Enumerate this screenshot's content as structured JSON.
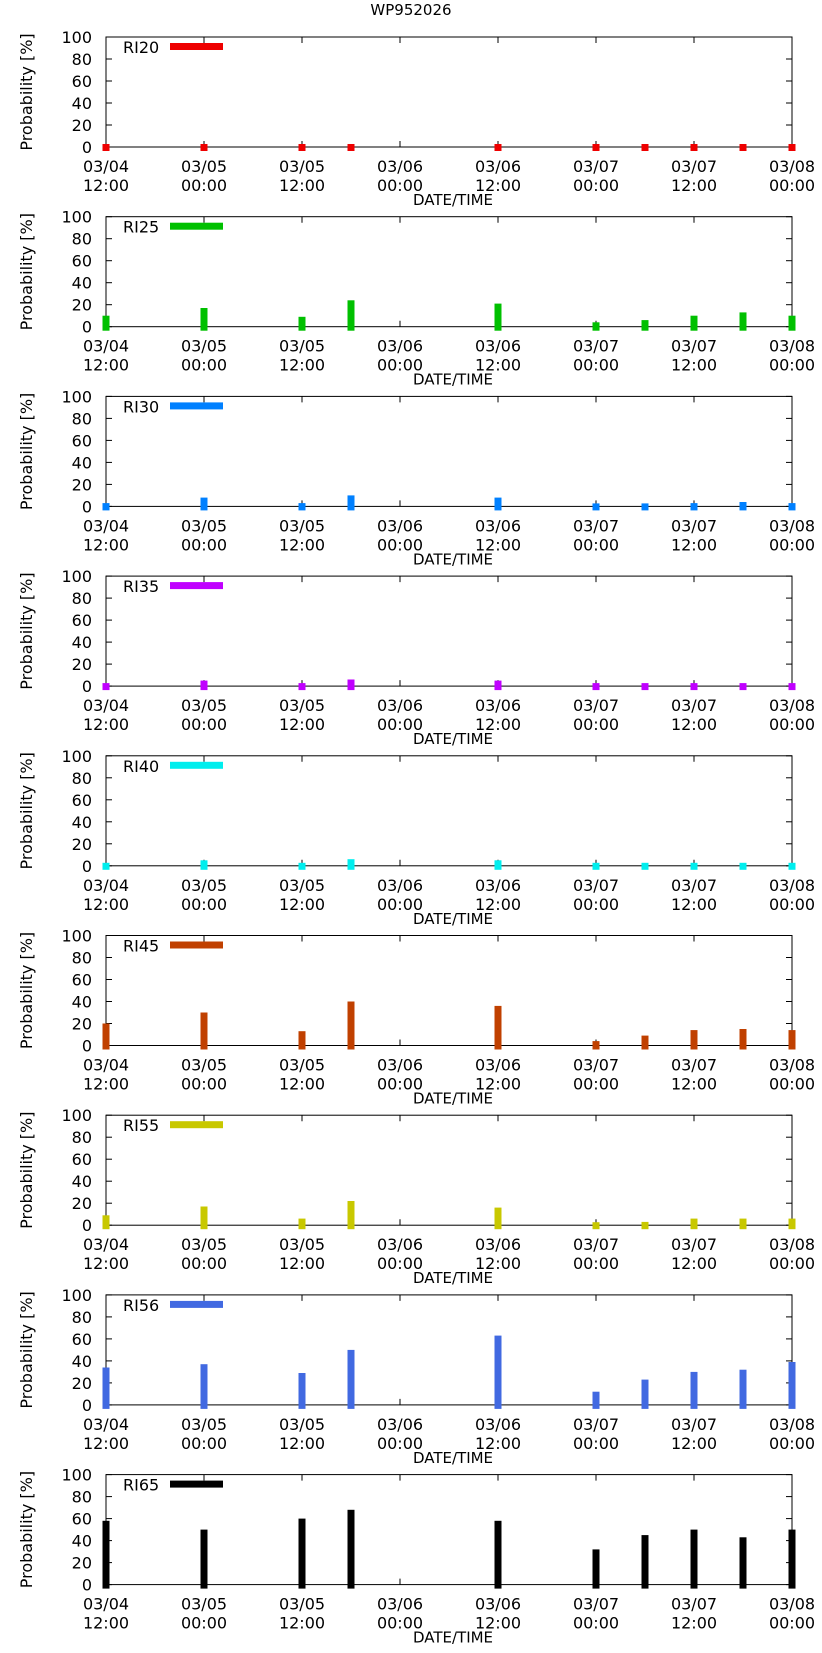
{
  "page": {
    "title": "WP952026"
  },
  "x_ticks": [
    {
      "date": "03/04",
      "time": "12:00",
      "t": 0
    },
    {
      "date": "03/05",
      "time": "00:00",
      "t": 12
    },
    {
      "date": "03/05",
      "time": "12:00",
      "t": 24
    },
    {
      "date": "03/06",
      "time": "00:00",
      "t": 36
    },
    {
      "date": "03/06",
      "time": "12:00",
      "t": 48
    },
    {
      "date": "03/07",
      "time": "00:00",
      "t": 60
    },
    {
      "date": "03/07",
      "time": "12:00",
      "t": 72
    },
    {
      "date": "03/08",
      "time": "00:00",
      "t": 84
    }
  ],
  "chart_data": [
    {
      "type": "bar",
      "title": "WP952026",
      "legend": "RI20",
      "color": "#ee0000",
      "xlabel": "DATE/TIME",
      "ylabel": "Probability [%]",
      "ylim": [
        0,
        100
      ],
      "yticks": [
        0,
        20,
        40,
        60,
        80,
        100
      ],
      "xlim": [
        0,
        84
      ],
      "x": [
        0,
        12,
        24,
        30,
        48,
        60,
        66,
        72,
        78,
        84
      ],
      "values": [
        0,
        1,
        1,
        1,
        1,
        0,
        0,
        0,
        1,
        0
      ]
    },
    {
      "type": "bar",
      "legend": "RI25",
      "color": "#00c000",
      "xlabel": "DATE/TIME",
      "ylabel": "Probability [%]",
      "ylim": [
        0,
        100
      ],
      "yticks": [
        0,
        20,
        40,
        60,
        80,
        100
      ],
      "xlim": [
        0,
        84
      ],
      "x": [
        0,
        12,
        24,
        30,
        48,
        60,
        66,
        72,
        78,
        84
      ],
      "values": [
        10,
        17,
        9,
        24,
        21,
        4,
        6,
        10,
        13,
        10
      ]
    },
    {
      "type": "bar",
      "legend": "RI30",
      "color": "#0080ff",
      "xlabel": "DATE/TIME",
      "ylabel": "Probability [%]",
      "ylim": [
        0,
        100
      ],
      "yticks": [
        0,
        20,
        40,
        60,
        80,
        100
      ],
      "xlim": [
        0,
        84
      ],
      "x": [
        0,
        12,
        24,
        30,
        48,
        60,
        66,
        72,
        78,
        84
      ],
      "values": [
        3,
        8,
        3,
        10,
        8,
        1,
        2,
        3,
        4,
        3
      ]
    },
    {
      "type": "bar",
      "legend": "RI35",
      "color": "#c000ff",
      "xlabel": "DATE/TIME",
      "ylabel": "Probability [%]",
      "ylim": [
        0,
        100
      ],
      "yticks": [
        0,
        20,
        40,
        60,
        80,
        100
      ],
      "xlim": [
        0,
        84
      ],
      "x": [
        0,
        12,
        24,
        30,
        48,
        60,
        66,
        72,
        78,
        84
      ],
      "values": [
        2,
        5,
        2,
        6,
        5,
        1,
        1,
        2,
        2,
        2
      ]
    },
    {
      "type": "bar",
      "legend": "RI40",
      "color": "#00eeee",
      "xlabel": "DATE/TIME",
      "ylabel": "Probability [%]",
      "ylim": [
        0,
        100
      ],
      "yticks": [
        0,
        20,
        40,
        60,
        80,
        100
      ],
      "xlim": [
        0,
        84
      ],
      "x": [
        0,
        12,
        24,
        30,
        48,
        60,
        66,
        72,
        78,
        84
      ],
      "values": [
        2,
        5,
        2,
        6,
        5,
        1,
        1,
        2,
        2,
        2
      ]
    },
    {
      "type": "bar",
      "legend": "RI45",
      "color": "#c04000",
      "xlabel": "DATE/TIME",
      "ylabel": "Probability [%]",
      "ylim": [
        0,
        100
      ],
      "yticks": [
        0,
        20,
        40,
        60,
        80,
        100
      ],
      "xlim": [
        0,
        84
      ],
      "x": [
        0,
        12,
        24,
        30,
        48,
        60,
        66,
        72,
        78,
        84
      ],
      "values": [
        20,
        30,
        13,
        40,
        36,
        4,
        9,
        14,
        15,
        14
      ]
    },
    {
      "type": "bar",
      "legend": "RI55",
      "color": "#c8c800",
      "xlabel": "DATE/TIME",
      "ylabel": "Probability [%]",
      "ylim": [
        0,
        100
      ],
      "yticks": [
        0,
        20,
        40,
        60,
        80,
        100
      ],
      "xlim": [
        0,
        84
      ],
      "x": [
        0,
        12,
        24,
        30,
        48,
        60,
        66,
        72,
        78,
        84
      ],
      "values": [
        9,
        17,
        6,
        22,
        16,
        2,
        3,
        6,
        6,
        6
      ]
    },
    {
      "type": "bar",
      "legend": "RI56",
      "color": "#4169e1",
      "xlabel": "DATE/TIME",
      "ylabel": "Probability [%]",
      "ylim": [
        0,
        100
      ],
      "yticks": [
        0,
        20,
        40,
        60,
        80,
        100
      ],
      "xlim": [
        0,
        84
      ],
      "x": [
        0,
        12,
        24,
        30,
        48,
        60,
        66,
        72,
        78,
        84
      ],
      "values": [
        34,
        37,
        29,
        50,
        63,
        12,
        23,
        30,
        32,
        39
      ]
    },
    {
      "type": "bar",
      "legend": "RI65",
      "color": "#000000",
      "xlabel": "DATE/TIME",
      "ylabel": "Probability [%]",
      "ylim": [
        0,
        100
      ],
      "yticks": [
        0,
        20,
        40,
        60,
        80,
        100
      ],
      "xlim": [
        0,
        84
      ],
      "x": [
        0,
        12,
        24,
        30,
        48,
        60,
        66,
        72,
        78,
        84
      ],
      "values": [
        58,
        50,
        60,
        68,
        58,
        32,
        45,
        50,
        43,
        50
      ]
    }
  ]
}
